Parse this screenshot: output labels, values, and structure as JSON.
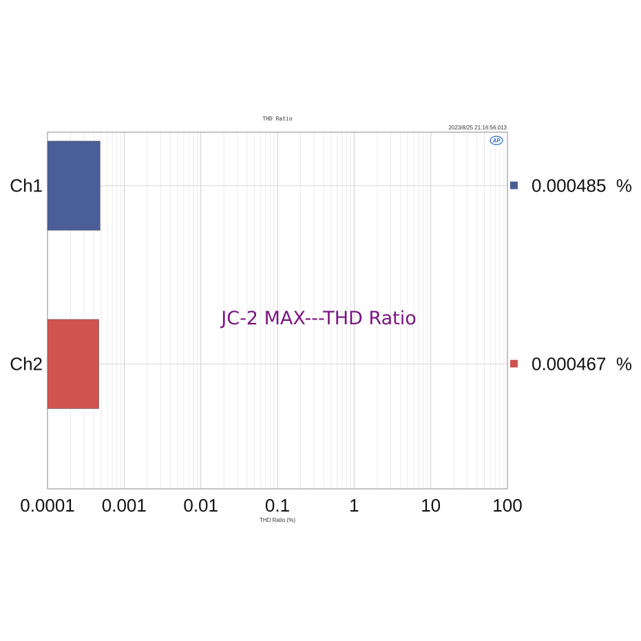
{
  "chart_data": {
    "type": "bar",
    "orientation": "horizontal",
    "title": "THD Ratio",
    "timestamp": "2023/8/25 21:16:56.013",
    "logo": "AP",
    "annotation": "JC-2 MAX---THD Ratio",
    "xlabel": "THD Ratio (%)",
    "xscale": "log",
    "xlim": [
      0.0001,
      100
    ],
    "x_tick_labels": [
      "0.0001",
      "0.001",
      "0.01",
      "0.1",
      "1",
      "10",
      "100"
    ],
    "categories": [
      "Ch1",
      "Ch2"
    ],
    "values": [
      0.000485,
      0.000467
    ],
    "value_labels": [
      "0.000485  %",
      "0.000467  %"
    ],
    "colors": [
      "#4a5e99",
      "#d0534f"
    ],
    "annotation_color": "#7b1582",
    "grid": true,
    "legend_placement": "right"
  }
}
